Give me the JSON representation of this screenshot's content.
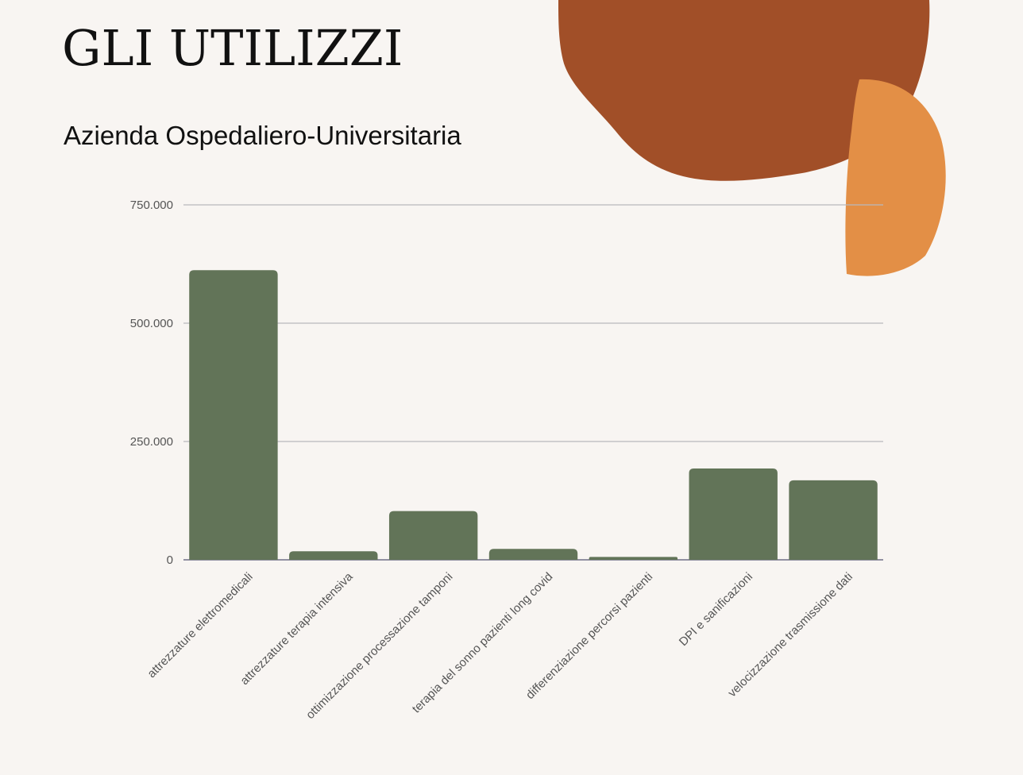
{
  "header": {
    "title": "GLI UTILIZZI",
    "subtitle": "Azienda Ospedaliero-Universitaria"
  },
  "colors": {
    "background": "#f8f5f2",
    "bar": "#627458",
    "grid": "#b9b9bd",
    "blob_dark": "#a14f28",
    "blob_light": "#e38f46"
  },
  "chart_data": {
    "type": "bar",
    "categories": [
      "attrezzature elettromedicali",
      "attrezzature terapia intensiva",
      "ottimizzazione processazione tamponi",
      "terapia del sonno pazienti long covid",
      "differenziazione percorsi pazienti",
      "DPI e sanificazioni",
      "velocizzazione trasmissione dati"
    ],
    "values": [
      612000,
      18000,
      103000,
      23000,
      6000,
      193000,
      168000
    ],
    "yticks": [
      0,
      250000,
      500000,
      750000
    ],
    "ytick_labels": [
      "0",
      "250.000",
      "500.000",
      "750.000"
    ],
    "ylim": [
      0,
      750000
    ],
    "grid": true,
    "legend": "none",
    "xlabel": "",
    "ylabel": ""
  }
}
